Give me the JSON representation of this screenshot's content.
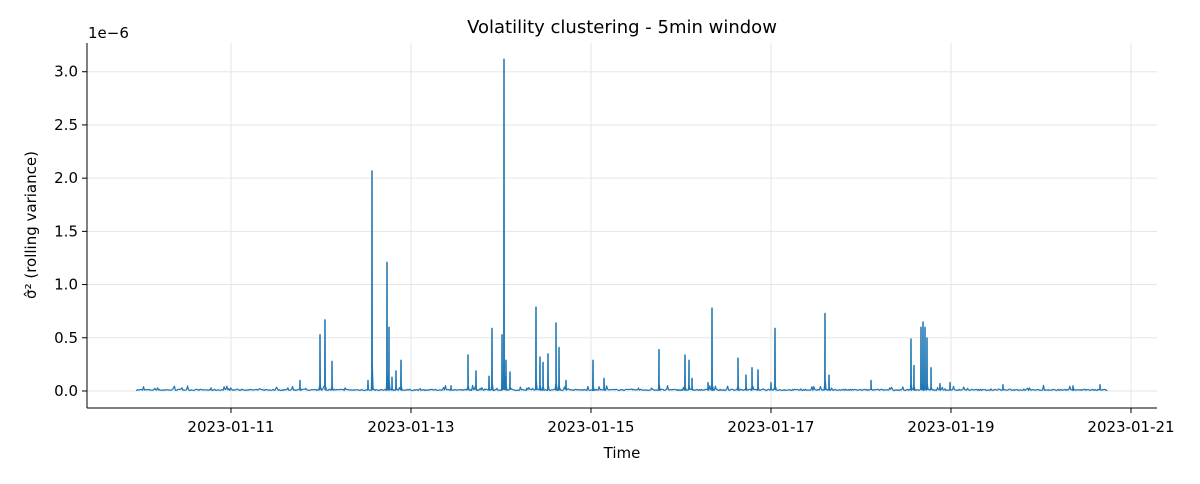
{
  "chart_data": {
    "type": "line",
    "title": "Volatility clustering - 5min window",
    "xlabel": "Time",
    "ylabel": "σ̂² (rolling variance)",
    "y_offset_label": "1e−6",
    "y_unit_multiplier": 1e-06,
    "xlim": [
      "2023-01-09T09:36",
      "2023-01-21T06:56"
    ],
    "ylim": [
      -0.16,
      3.27
    ],
    "x_ticks": [
      "2023-01-11",
      "2023-01-13",
      "2023-01-15",
      "2023-01-17",
      "2023-01-19",
      "2023-01-21"
    ],
    "y_ticks": [
      "0.0",
      "0.5",
      "1.0",
      "1.5",
      "2.0",
      "2.5",
      "3.0"
    ],
    "grid": true,
    "line_color": "#1f77b4",
    "series_start": "2023-01-09T22:40",
    "series_end": "2023-01-20T17:50",
    "baseline_level": 0.01,
    "x": [
      "2023-01-10T18:40",
      "2023-01-11T18:24",
      "2023-01-11T23:44",
      "2023-01-12T01:04",
      "2023-01-12T02:56",
      "2023-01-12T12:32",
      "2023-01-12T13:36",
      "2023-01-12T17:36",
      "2023-01-12T18:08",
      "2023-01-12T18:56",
      "2023-01-12T20:00",
      "2023-01-12T21:20",
      "2023-01-13T10:40",
      "2023-01-13T15:12",
      "2023-01-13T17:20",
      "2023-01-13T20:48",
      "2023-01-13T21:36",
      "2023-01-14T00:16",
      "2023-01-14T00:48",
      "2023-01-14T01:20",
      "2023-01-14T02:24",
      "2023-01-14T09:20",
      "2023-01-14T10:24",
      "2023-01-14T11:12",
      "2023-01-14T12:32",
      "2023-01-14T14:40",
      "2023-01-14T15:28",
      "2023-01-14T17:20",
      "2023-01-15T00:32",
      "2023-01-15T03:28",
      "2023-01-15T18:08",
      "2023-01-16T01:04",
      "2023-01-16T02:08",
      "2023-01-16T02:56",
      "2023-01-16T07:12",
      "2023-01-16T08:16",
      "2023-01-16T15:12",
      "2023-01-16T17:20",
      "2023-01-16T18:56",
      "2023-01-16T20:32",
      "2023-01-17T00:00",
      "2023-01-17T01:04",
      "2023-01-17T14:24",
      "2023-01-17T15:28",
      "2023-01-18T02:40",
      "2023-01-18T13:20",
      "2023-01-18T14:08",
      "2023-01-18T16:00",
      "2023-01-18T16:32",
      "2023-01-18T17:04",
      "2023-01-18T17:36",
      "2023-01-18T18:40",
      "2023-01-18T21:04",
      "2023-01-18T23:44",
      "2023-01-19T13:52",
      "2023-01-20T08:32",
      "2023-01-20T15:44"
    ],
    "y": [
      0.03,
      0.1,
      0.53,
      0.67,
      0.28,
      0.1,
      2.07,
      1.21,
      0.6,
      0.13,
      0.19,
      0.29,
      0.05,
      0.34,
      0.19,
      0.14,
      0.59,
      0.53,
      3.12,
      0.29,
      0.18,
      0.79,
      0.32,
      0.27,
      0.35,
      0.64,
      0.41,
      0.1,
      0.29,
      0.12,
      0.39,
      0.34,
      0.29,
      0.12,
      0.08,
      0.78,
      0.31,
      0.15,
      0.22,
      0.2,
      0.08,
      0.59,
      0.73,
      0.15,
      0.1,
      0.49,
      0.24,
      0.6,
      0.65,
      0.6,
      0.5,
      0.22,
      0.07,
      0.08,
      0.06,
      0.05,
      0.06
    ]
  }
}
